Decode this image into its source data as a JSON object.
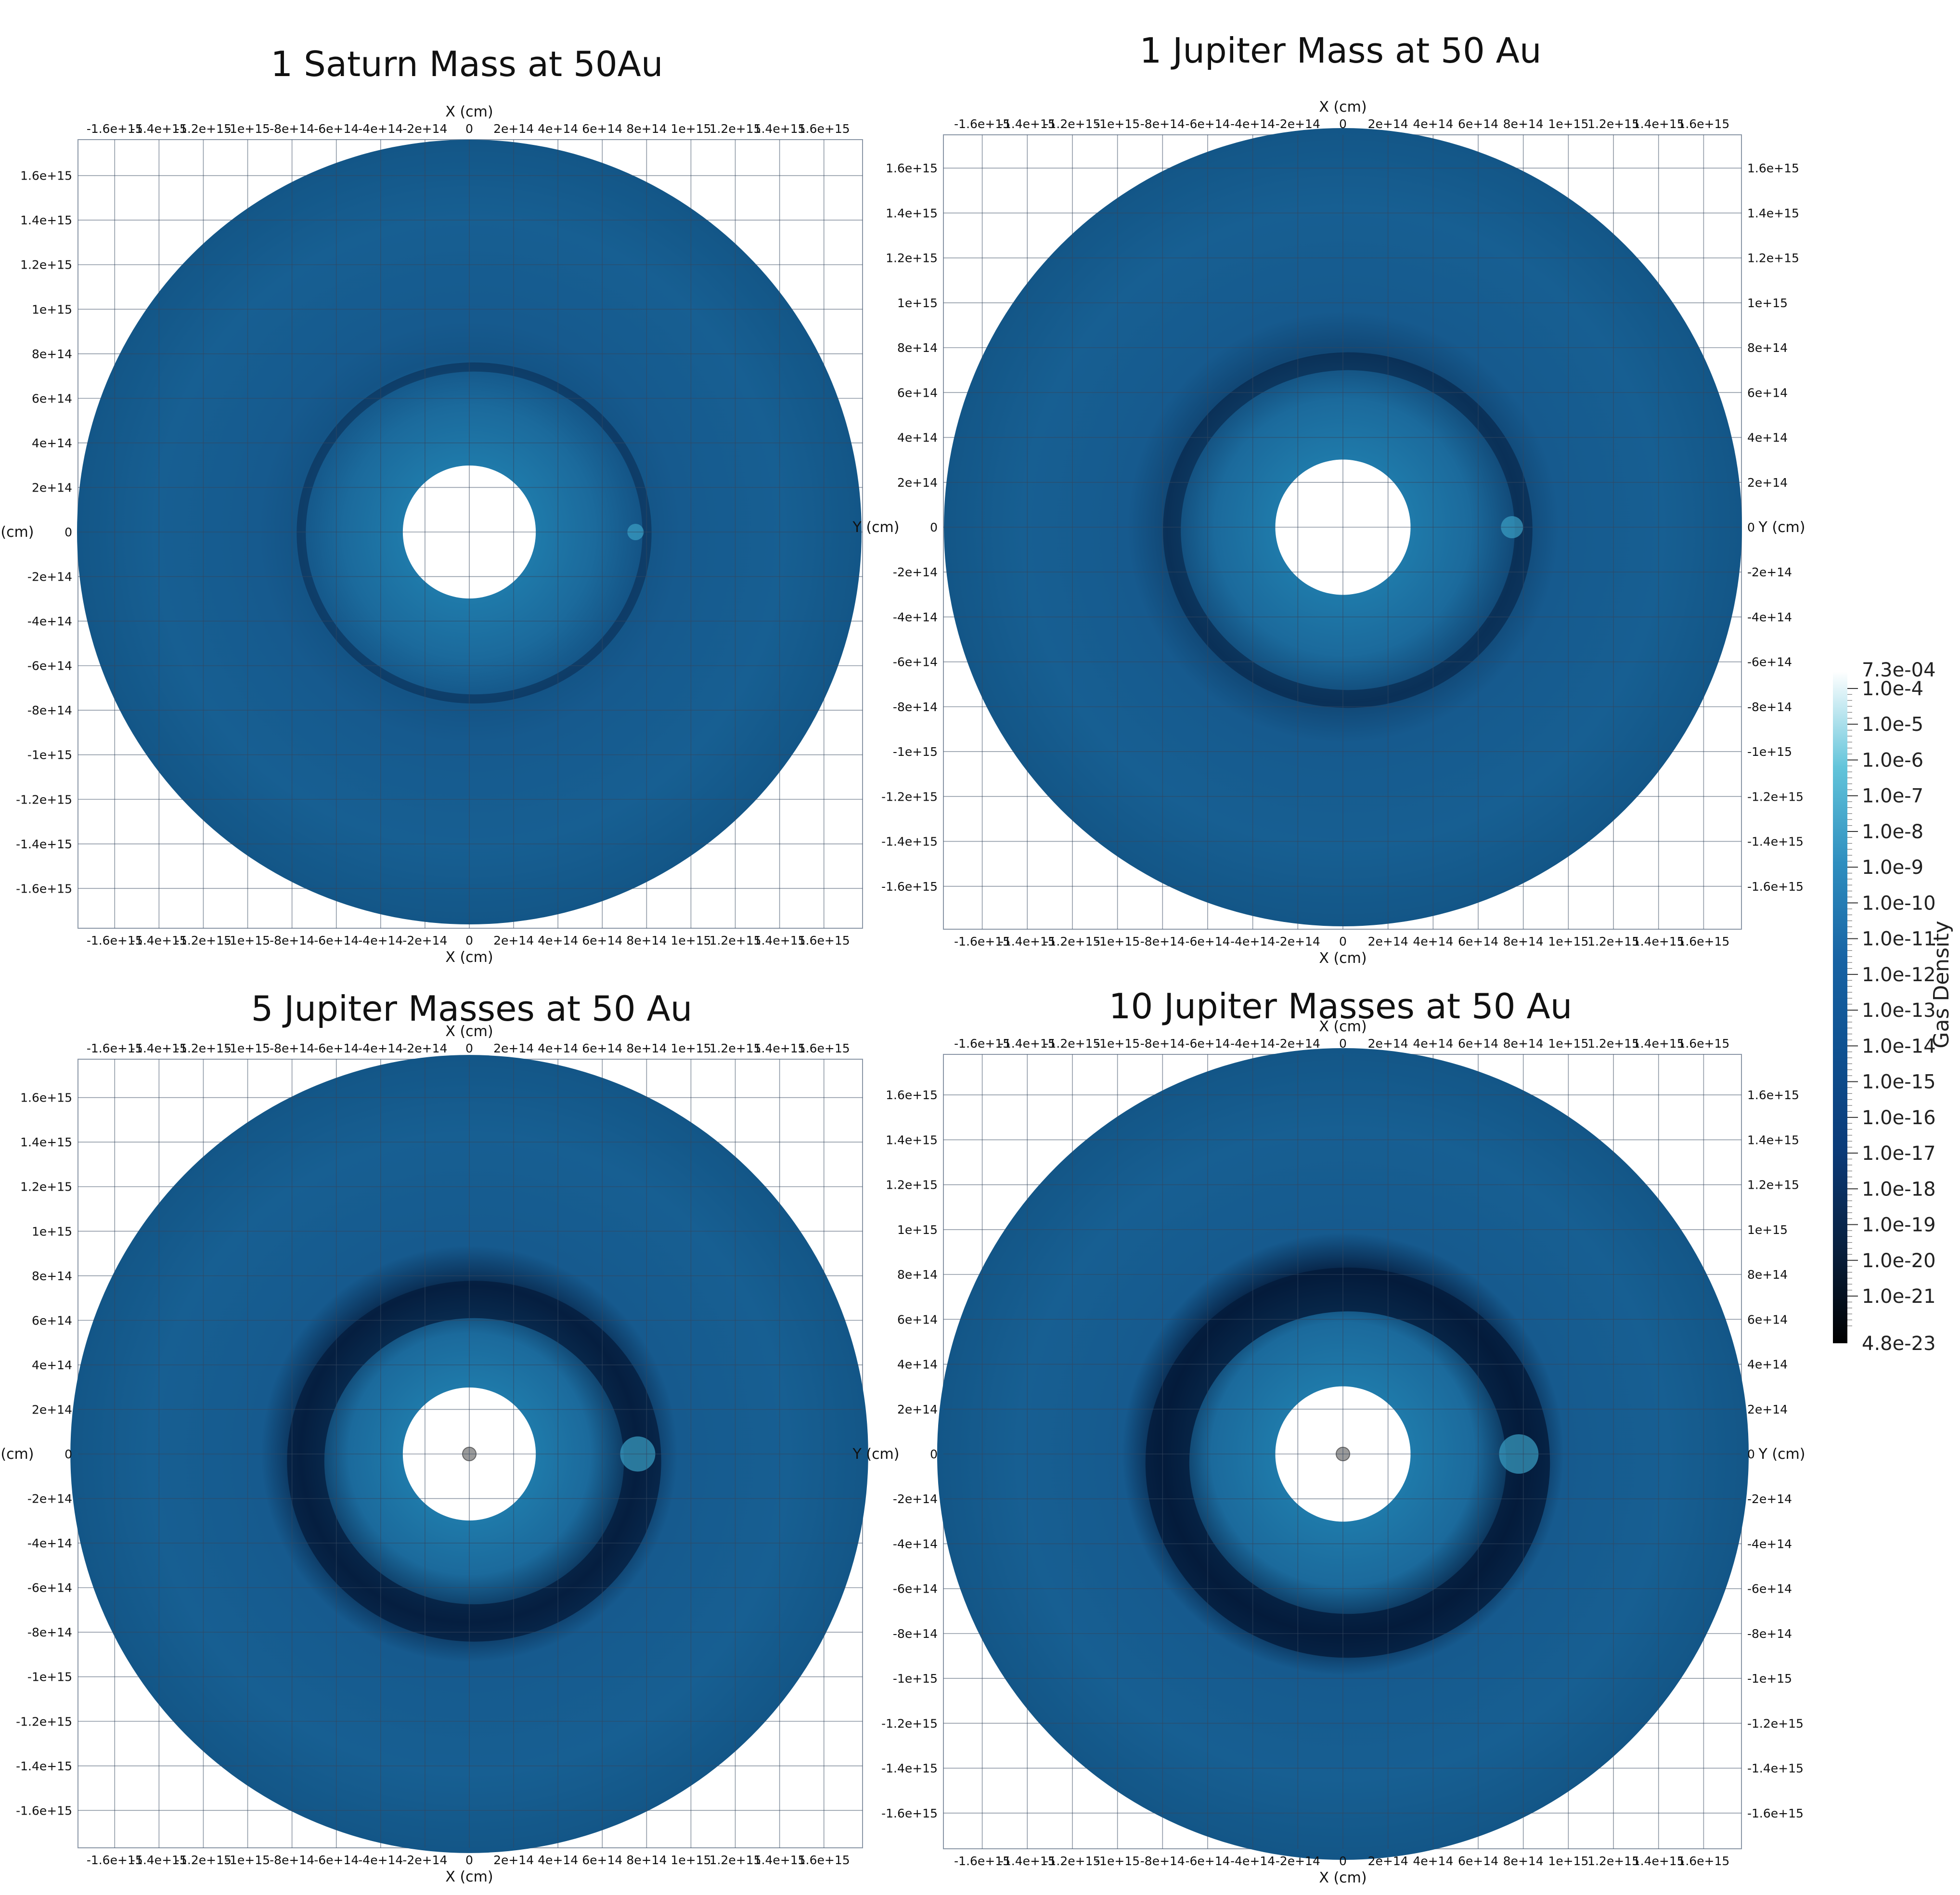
{
  "chart_data": {
    "type": "heatmap",
    "colorbar": {
      "title": "Gas Density",
      "max_label": "7.3e-04",
      "min_label": "4.8e-23",
      "ticks": [
        "1.0e-4",
        "1.0e-5",
        "1.0e-6",
        "1.0e-7",
        "1.0e-8",
        "1.0e-9",
        "1.0e-10",
        "1.0e-11",
        "1.0e-12",
        "1.0e-13",
        "1.0e-14",
        "1.0e-15",
        "1.0e-16",
        "1.0e-17",
        "1.0e-18",
        "1.0e-19",
        "1.0e-20",
        "1.0e-21"
      ],
      "scale": "log",
      "colormap": [
        "#000000",
        "#08203f",
        "#0a3a78",
        "#0e5090",
        "#1763a4",
        "#2e8ebf",
        "#62c4da",
        "#ffffff"
      ]
    },
    "panels": [
      {
        "title": "1 Saturn Mass at 50Au",
        "xlabel": "X (cm)",
        "ylabel": "Y (cm)",
        "disk_outer_radius": 1770000000000000.0,
        "inner_hole_radius": 300000000000000.0,
        "planet": {
          "x": 750000000000000.0,
          "y": 0
        },
        "gap": {
          "radius": 780000000000000.0,
          "depth": 0.1
        },
        "central_star": false,
        "right_axis": false
      },
      {
        "title": "1 Jupiter Mass at 50 Au",
        "xlabel": "X (cm)",
        "ylabel": "Y (cm)",
        "disk_outer_radius": 1770000000000000.0,
        "inner_hole_radius": 300000000000000.0,
        "planet": {
          "x": 750000000000000.0,
          "y": 0
        },
        "gap": {
          "radius": 780000000000000.0,
          "depth": 0.3
        },
        "central_star": false,
        "right_axis": true
      },
      {
        "title": "5 Jupiter Masses at 50 Au",
        "xlabel": "X (cm)",
        "ylabel": "Y (cm)",
        "disk_outer_radius": 1800000000000000.0,
        "inner_hole_radius": 300000000000000.0,
        "planet": {
          "x": 760000000000000.0,
          "y": 0
        },
        "gap": {
          "radius": 760000000000000.0,
          "depth": 0.75
        },
        "central_star": true,
        "right_axis": false
      },
      {
        "title": "10 Jupiter Masses at 50 Au",
        "xlabel": "X (cm)",
        "ylabel": "Y (cm)",
        "disk_outer_radius": 1800000000000000.0,
        "inner_hole_radius": 300000000000000.0,
        "planet": {
          "x": 780000000000000.0,
          "y": 0
        },
        "gap": {
          "radius": 800000000000000.0,
          "depth": 0.9
        },
        "central_star": true,
        "right_axis": true
      }
    ],
    "x_ticks": [
      -1600000000000000.0,
      -1400000000000000.0,
      -1200000000000000.0,
      -1000000000000000.0,
      -800000000000000.0,
      -600000000000000.0,
      -400000000000000.0,
      -200000000000000.0,
      0,
      200000000000000.0,
      400000000000000.0,
      600000000000000.0,
      800000000000000.0,
      1000000000000000.0,
      1200000000000000.0,
      1400000000000000.0,
      1600000000000000.0
    ],
    "x_tick_labels": [
      "-1.6e+15",
      "-1.4e+15",
      "-1.2e+15",
      "-1e+15",
      "-8e+14",
      "-6e+14",
      "-4e+14",
      "-2e+14",
      "0",
      "2e+14",
      "4e+14",
      "6e+14",
      "8e+14",
      "1e+15",
      "1.2e+15",
      "1.4e+15",
      "1.6e+15"
    ],
    "y_ticks": [
      1600000000000000.0,
      1400000000000000.0,
      1200000000000000.0,
      1000000000000000.0,
      800000000000000.0,
      600000000000000.0,
      400000000000000.0,
      200000000000000.0,
      0,
      -200000000000000.0,
      -400000000000000.0,
      -600000000000000.0,
      -800000000000000.0,
      -1000000000000000.0,
      -1200000000000000.0,
      -1400000000000000.0,
      -1600000000000000.0
    ],
    "y_tick_labels": [
      "1.6e+15",
      "1.4e+15",
      "1.2e+15",
      "1e+15",
      "8e+14",
      "6e+14",
      "4e+14",
      "2e+14",
      "0",
      "-2e+14",
      "-4e+14",
      "-6e+14",
      "-8e+14",
      "-1e+15",
      "-1.2e+15",
      "-1.4e+15",
      "-1.6e+15"
    ],
    "x_range": [
      -1770000000000000.0,
      1770000000000000.0
    ],
    "y_range": [
      -1770000000000000.0,
      1770000000000000.0
    ],
    "grid": true
  }
}
